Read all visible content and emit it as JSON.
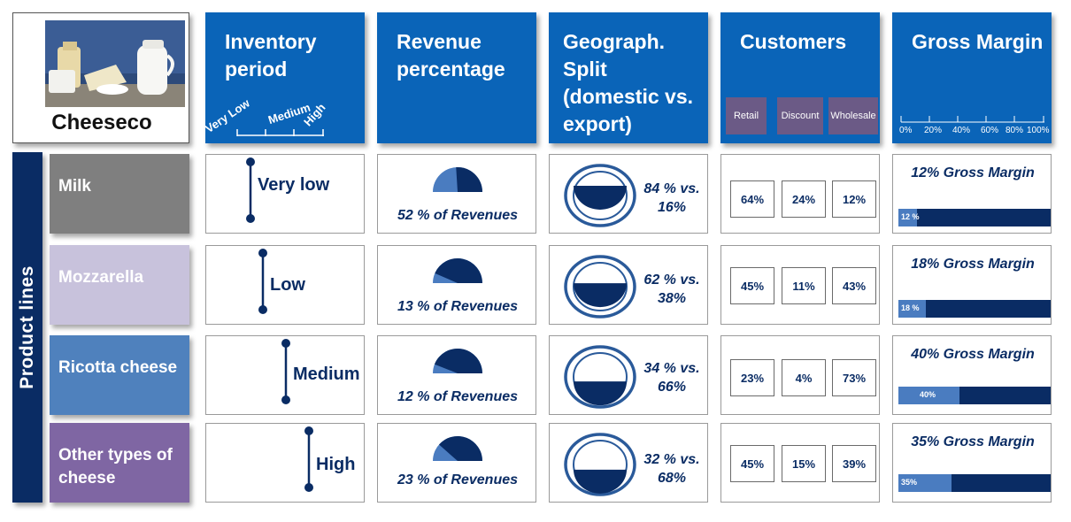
{
  "logo": {
    "name": "Cheeseco",
    "image": "dairy-products-photo"
  },
  "sidebar_label": "Product lines",
  "headers": {
    "inventory": {
      "title": "Inventory period",
      "levels": [
        "Very Low",
        "Medium",
        "High"
      ]
    },
    "revenue": {
      "title": "Revenue percentage"
    },
    "geo": {
      "title": "Geograph. Split (domestic vs. export)"
    },
    "customers": {
      "title": "Customers",
      "segments": [
        "Retail",
        "Discount",
        "Wholesale"
      ]
    },
    "gross_margin": {
      "title": "Gross Margin",
      "scale": [
        "0%",
        "20%",
        "40%",
        "60%",
        "80%",
        "100%"
      ]
    }
  },
  "colors": {
    "header_blue": "#0a64b8",
    "dark_navy": "#0a2c64",
    "light_blue": "#4a7cc0",
    "customer_purple": "#6b5a86"
  },
  "rows": [
    {
      "label": "Milk",
      "label_color": "#7f7f7f",
      "inventory": "Very low",
      "inventory_level": 0,
      "revenue_text": "52 % of Revenues",
      "revenue_pct": 52,
      "geo_text": "84 % vs. 16%",
      "domestic_pct": 84,
      "customers": [
        "64%",
        "24%",
        "12%"
      ],
      "gm_title": "12% Gross Margin",
      "gm_bar_label": "12 %",
      "gm_pct": 12
    },
    {
      "label": "Mozzarella",
      "label_color": "#c8c2dc",
      "inventory": "Low",
      "inventory_level": 1,
      "revenue_text": "13 % of Revenues",
      "revenue_pct": 13,
      "geo_text": "62 % vs. 38%",
      "domestic_pct": 62,
      "customers": [
        "45%",
        "11%",
        "43%"
      ],
      "gm_title": "18% Gross Margin",
      "gm_bar_label": "18 %",
      "gm_pct": 18
    },
    {
      "label": "Ricotta cheese",
      "label_color": "#4f81bd",
      "inventory": "Medium",
      "inventory_level": 2,
      "revenue_text": "12 % of Revenues",
      "revenue_pct": 12,
      "geo_text": "34 % vs. 66%",
      "domestic_pct": 34,
      "customers": [
        "23%",
        "4%",
        "73%"
      ],
      "gm_title": "40% Gross Margin",
      "gm_bar_label": "40%",
      "gm_pct": 40
    },
    {
      "label": "Other types of cheese",
      "label_color": "#7f66a3",
      "inventory": "High",
      "inventory_level": 3,
      "revenue_text": "23 % of Revenues",
      "revenue_pct": 23,
      "geo_text": "32 % vs. 68%",
      "domestic_pct": 32,
      "customers": [
        "45%",
        "15%",
        "39%"
      ],
      "gm_title": "35% Gross Margin",
      "gm_bar_label": "35%",
      "gm_pct": 35
    }
  ]
}
